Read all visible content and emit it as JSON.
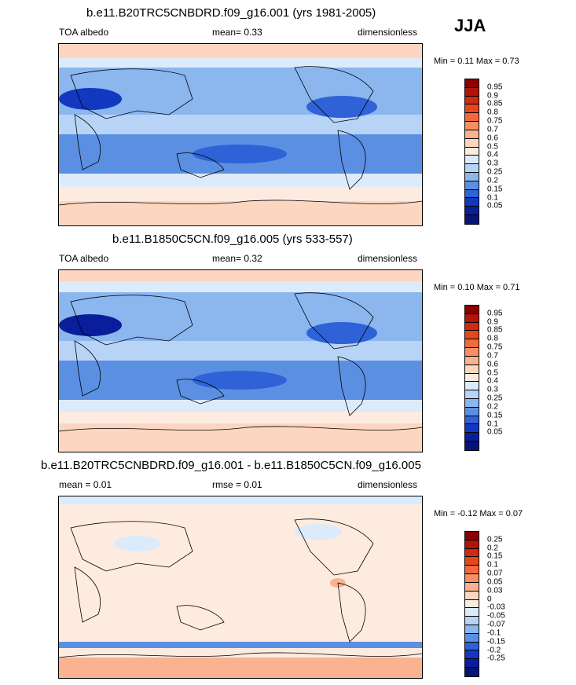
{
  "season": "JJA",
  "panels": [
    {
      "title": "b.e11.B20TRC5CNBDRD.f09_g16.001 (yrs 1981-2005)",
      "left_label": "TOA albedo",
      "center_label": "mean=  0.33",
      "right_label": "dimensionless",
      "minmax": "Min =  0.11 Max =  0.73",
      "colorbar": {
        "labels": [
          "0.95",
          "0.9",
          "0.85",
          "0.8",
          "0.75",
          "0.7",
          "0.6",
          "0.5",
          "0.4",
          "0.3",
          "0.25",
          "0.2",
          "0.15",
          "0.1",
          "0.05"
        ],
        "colors": [
          "#8b0000",
          "#b2140a",
          "#d02a10",
          "#e6461c",
          "#f26a3c",
          "#f78f63",
          "#fab291",
          "#fcd6c0",
          "#fdebe0",
          "#dcebfb",
          "#b7d4f6",
          "#8bb6ee",
          "#5b8fe2",
          "#2f62d6",
          "#1238c0",
          "#0a1e9c",
          "#061478"
        ]
      },
      "chart_data": {
        "type": "heatmap",
        "variable": "TOA albedo",
        "units": "dimensionless",
        "mean": 0.33,
        "min": 0.11,
        "max": 0.73,
        "color_levels": [
          0.05,
          0.1,
          0.15,
          0.2,
          0.25,
          0.3,
          0.4,
          0.5,
          0.6,
          0.7,
          0.75,
          0.8,
          0.85,
          0.9,
          0.95
        ]
      }
    },
    {
      "title": "b.e11.B1850C5CN.f09_g16.005 (yrs 533-557)",
      "left_label": "TOA albedo",
      "center_label": "mean=  0.32",
      "right_label": "dimensionless",
      "minmax": "Min =  0.10 Max =  0.71",
      "colorbar": {
        "labels": [
          "0.95",
          "0.9",
          "0.85",
          "0.8",
          "0.75",
          "0.7",
          "0.6",
          "0.5",
          "0.4",
          "0.3",
          "0.25",
          "0.2",
          "0.15",
          "0.1",
          "0.05"
        ],
        "colors": [
          "#8b0000",
          "#b2140a",
          "#d02a10",
          "#e6461c",
          "#f26a3c",
          "#f78f63",
          "#fab291",
          "#fcd6c0",
          "#fdebe0",
          "#dcebfb",
          "#b7d4f6",
          "#8bb6ee",
          "#5b8fe2",
          "#2f62d6",
          "#1238c0",
          "#0a1e9c",
          "#061478"
        ]
      },
      "chart_data": {
        "type": "heatmap",
        "variable": "TOA albedo",
        "units": "dimensionless",
        "mean": 0.32,
        "min": 0.1,
        "max": 0.71,
        "color_levels": [
          0.05,
          0.1,
          0.15,
          0.2,
          0.25,
          0.3,
          0.4,
          0.5,
          0.6,
          0.7,
          0.75,
          0.8,
          0.85,
          0.9,
          0.95
        ]
      }
    },
    {
      "title": "b.e11.B20TRC5CNBDRD.f09_g16.001 - b.e11.B1850C5CN.f09_g16.005",
      "left_label": "mean =   0.01",
      "center_label": "rmse =   0.01",
      "right_label": "dimensionless",
      "minmax": "Min = -0.12 Max =  0.07",
      "colorbar": {
        "labels": [
          "0.25",
          "0.2",
          "0.15",
          "0.1",
          "0.07",
          "0.05",
          "0.03",
          "0",
          "-0.03",
          "-0.05",
          "-0.07",
          "-0.1",
          "-0.15",
          "-0.2",
          "-0.25"
        ],
        "colors": [
          "#8b0000",
          "#b2140a",
          "#d02a10",
          "#e6461c",
          "#f26a3c",
          "#f78f63",
          "#fab291",
          "#fcd6c0",
          "#fdebe0",
          "#dcebfb",
          "#b7d4f6",
          "#8bb6ee",
          "#5b8fe2",
          "#2f62d6",
          "#1238c0",
          "#0a1e9c",
          "#061478"
        ]
      },
      "chart_data": {
        "type": "heatmap",
        "variable": "TOA albedo difference",
        "units": "dimensionless",
        "mean": 0.01,
        "rmse": 0.01,
        "min": -0.12,
        "max": 0.07,
        "color_levels": [
          -0.25,
          -0.2,
          -0.15,
          -0.1,
          -0.07,
          -0.05,
          -0.03,
          0,
          0.03,
          0.05,
          0.07,
          0.1,
          0.15,
          0.2,
          0.25
        ]
      }
    }
  ],
  "chart_data": [
    {
      "type": "heatmap",
      "variable": "TOA albedo",
      "units": "dimensionless",
      "mean": 0.33,
      "min": 0.11,
      "max": 0.73
    },
    {
      "type": "heatmap",
      "variable": "TOA albedo",
      "units": "dimensionless",
      "mean": 0.32,
      "min": 0.1,
      "max": 0.71
    },
    {
      "type": "heatmap",
      "variable": "TOA albedo difference",
      "units": "dimensionless",
      "mean": 0.01,
      "rmse": 0.01,
      "min": -0.12,
      "max": 0.07
    }
  ]
}
